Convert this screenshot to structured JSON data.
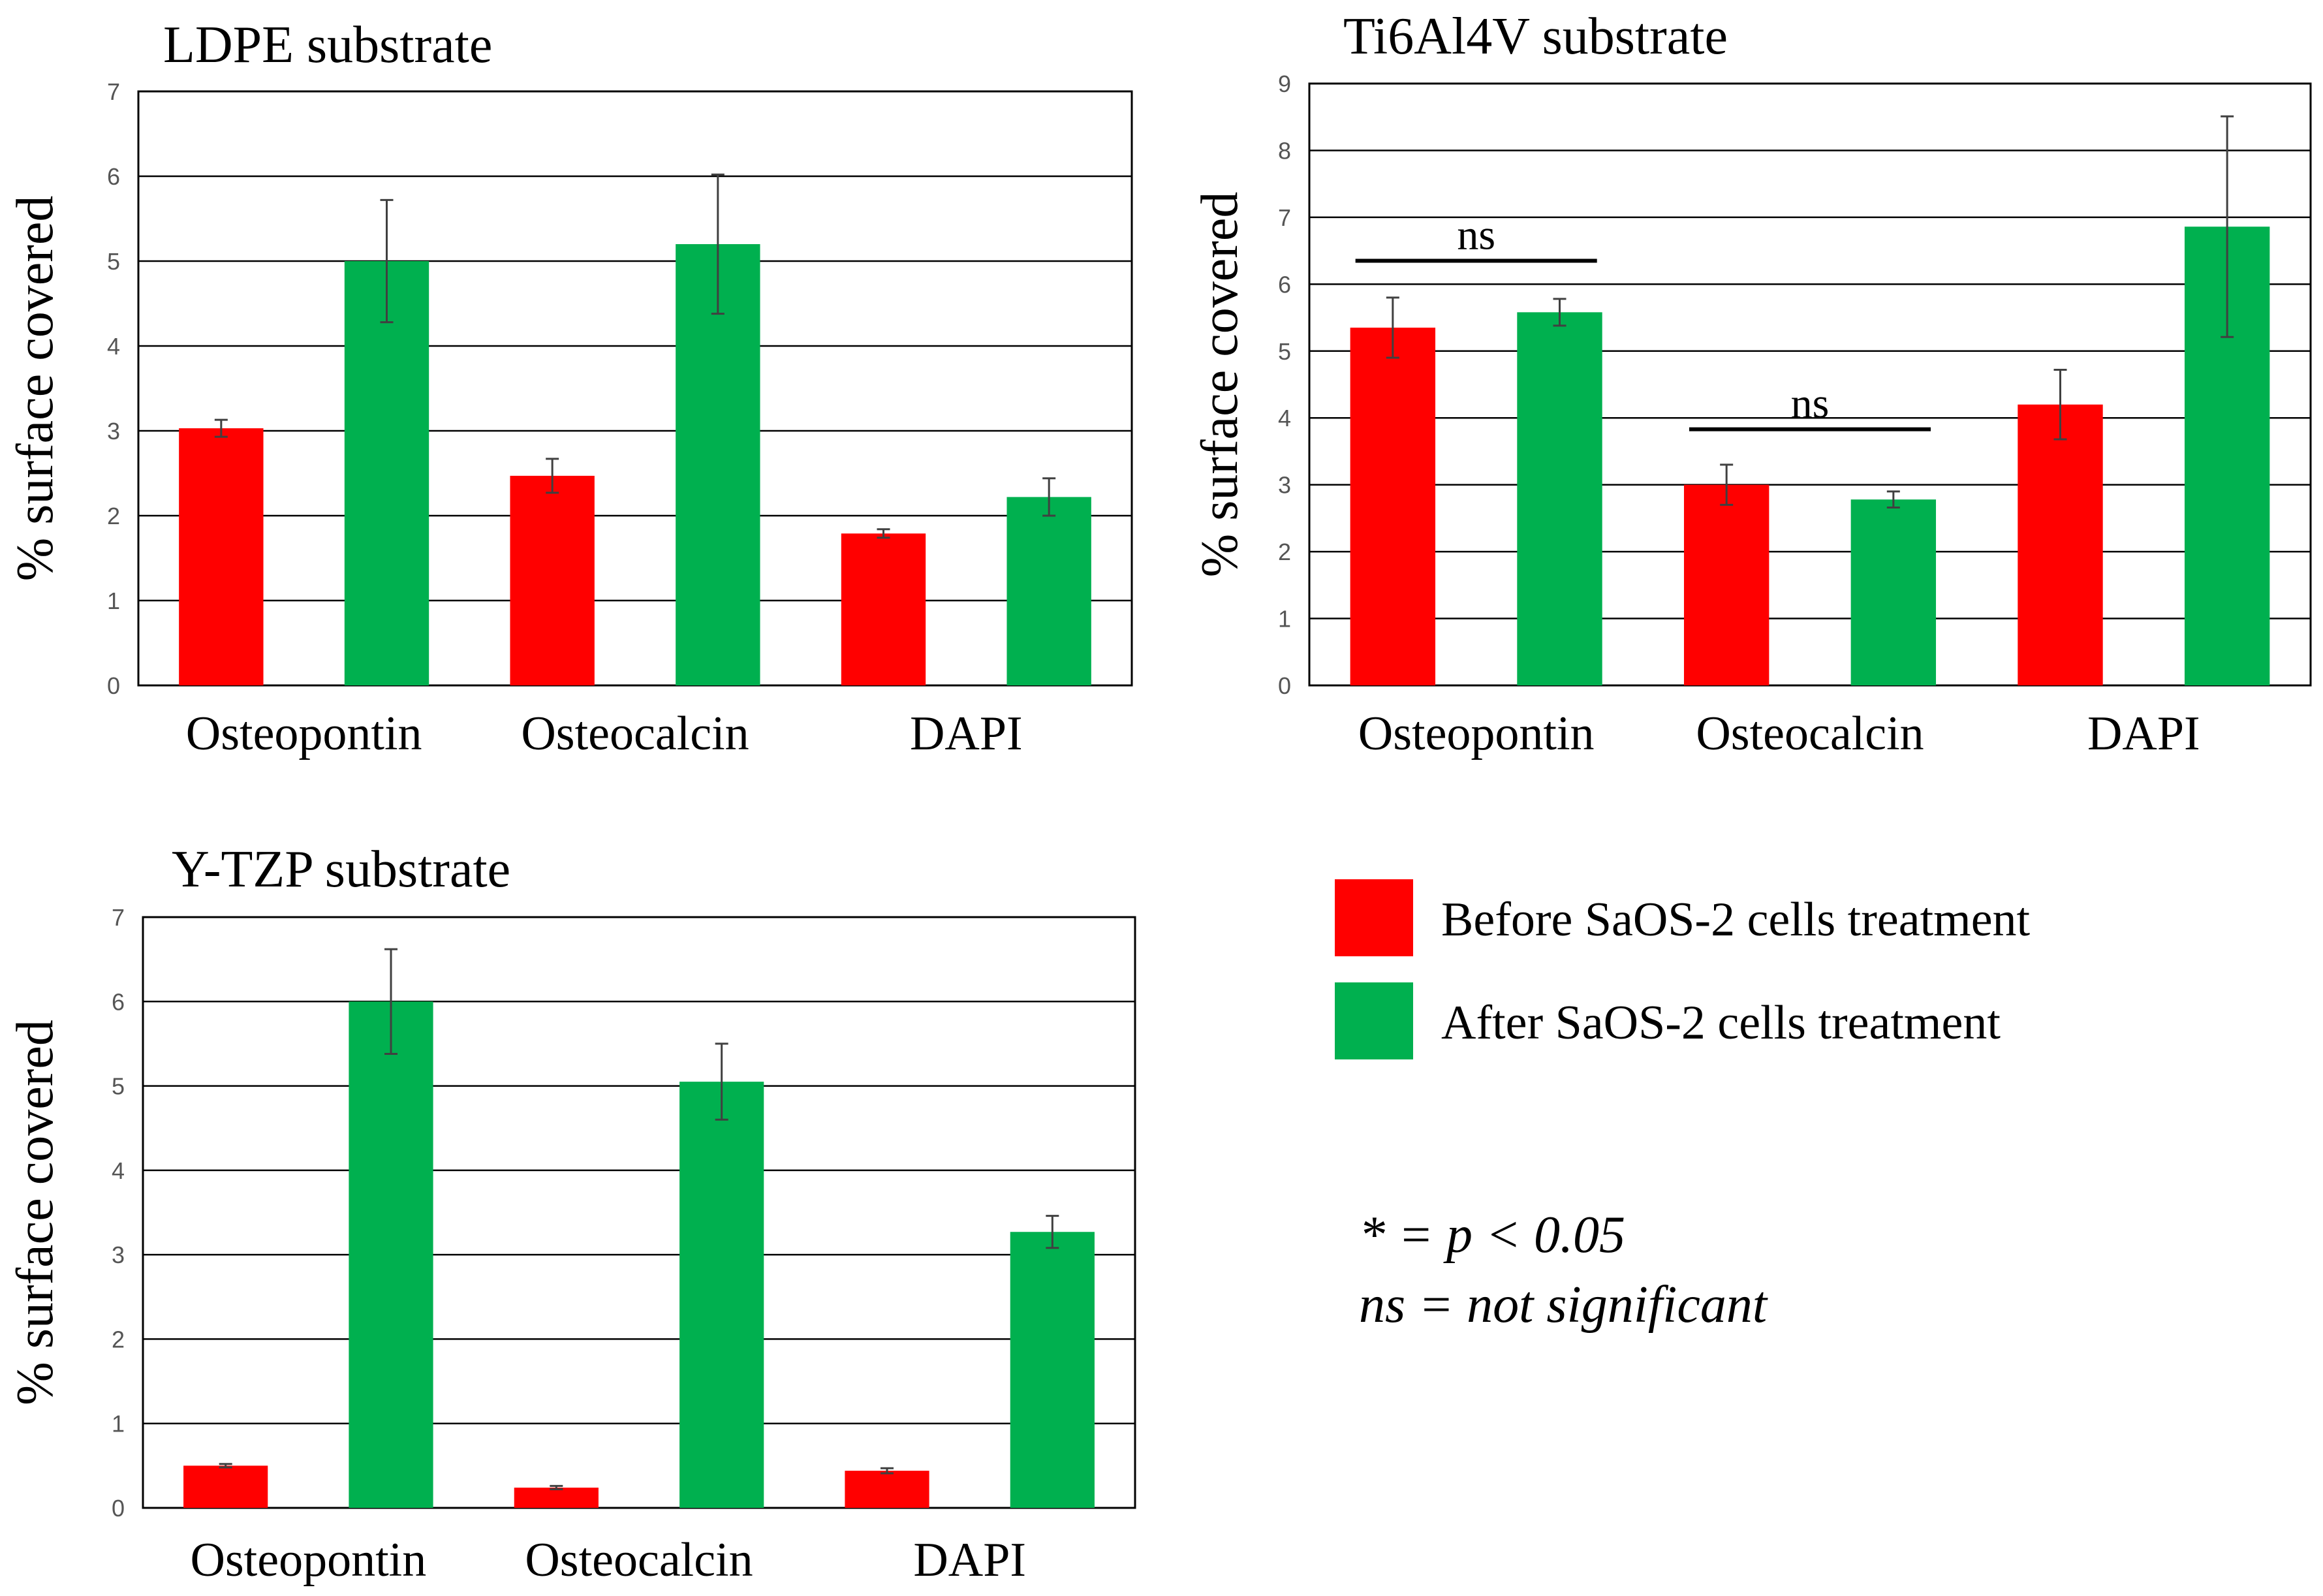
{
  "figure": {
    "colors": {
      "before": "#ff0000",
      "after": "#00b04f",
      "grid": "#000000",
      "error": "#404040"
    },
    "legend": {
      "items": [
        {
          "label": "Before SaOS-2 cells treatment",
          "color": "#ff0000"
        },
        {
          "label": "After SaOS-2 cells treatment",
          "color": "#00b04f"
        }
      ]
    },
    "notes": [
      "* = p < 0.05",
      "ns = not significant"
    ]
  },
  "chart_data": [
    {
      "type": "bar",
      "title": "LDPE substrate",
      "ylabel": "% surface covered",
      "xlabel": "",
      "ylim": [
        0,
        7
      ],
      "yticks": [
        0,
        1,
        2,
        3,
        4,
        5,
        6,
        7
      ],
      "grid": true,
      "categories": [
        "Osteopontin",
        "Osteocalcin",
        "DAPI"
      ],
      "series": [
        {
          "name": "Before SaOS-2 cells treatment",
          "color": "#ff0000",
          "values": [
            3.03,
            2.47,
            1.79
          ],
          "errors": [
            0.1,
            0.2,
            0.05
          ]
        },
        {
          "name": "After SaOS-2 cells treatment",
          "color": "#00b04f",
          "values": [
            5.0,
            5.2,
            2.22
          ],
          "errors": [
            0.72,
            0.82,
            0.22
          ]
        }
      ],
      "annotations": []
    },
    {
      "type": "bar",
      "title": "Ti6Al4V substrate",
      "ylabel": "% surface covered",
      "xlabel": "",
      "ylim": [
        0,
        9
      ],
      "yticks": [
        0,
        1,
        2,
        3,
        4,
        5,
        6,
        7,
        8,
        9
      ],
      "grid": true,
      "categories": [
        "Osteopontin",
        "Osteocalcin",
        "DAPI"
      ],
      "series": [
        {
          "name": "Before SaOS-2 cells treatment",
          "color": "#ff0000",
          "values": [
            5.35,
            3.0,
            4.2
          ],
          "errors": [
            0.45,
            0.3,
            0.52
          ]
        },
        {
          "name": "After SaOS-2 cells treatment",
          "color": "#00b04f",
          "values": [
            5.58,
            2.78,
            6.86
          ],
          "errors": [
            0.2,
            0.12,
            1.65
          ]
        }
      ],
      "annotations": [
        {
          "text": "ns",
          "category_index": 0,
          "y": 6.35
        },
        {
          "text": "ns",
          "category_index": 1,
          "y": 3.83
        }
      ]
    },
    {
      "type": "bar",
      "title": "Y-TZP substrate",
      "ylabel": "% surface covered",
      "xlabel": "",
      "ylim": [
        0,
        7
      ],
      "yticks": [
        0,
        1,
        2,
        3,
        4,
        5,
        6,
        7
      ],
      "grid": true,
      "categories": [
        "Osteopontin",
        "Osteocalcin",
        "DAPI"
      ],
      "series": [
        {
          "name": "Before SaOS-2 cells treatment",
          "color": "#ff0000",
          "values": [
            0.5,
            0.24,
            0.44
          ],
          "errors": [
            0.02,
            0.02,
            0.03
          ]
        },
        {
          "name": "After SaOS-2 cells treatment",
          "color": "#00b04f",
          "values": [
            6.0,
            5.05,
            3.27
          ],
          "errors": [
            0.62,
            0.45,
            0.19
          ]
        }
      ],
      "annotations": []
    }
  ]
}
